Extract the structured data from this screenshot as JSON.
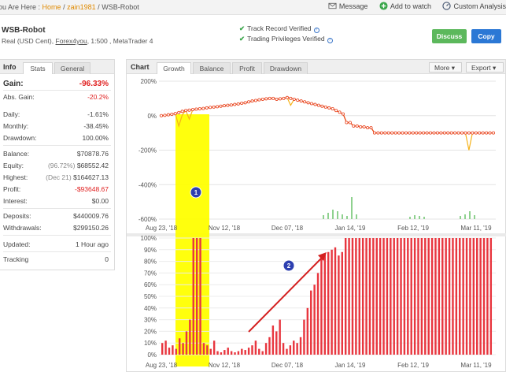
{
  "breadcrumb": {
    "prefix": "ou Are Here :",
    "home": "Home",
    "sep": "/",
    "user": "zain1981",
    "page": "WSB-Robot"
  },
  "top_actions": {
    "message": "Message",
    "watch": "Add to watch",
    "analysis": "Custom Analysis"
  },
  "account": {
    "name": "WSB-Robot",
    "desc_prefix": "Real (USD Cent),",
    "broker": "Forex4you",
    "desc_suffix": ", 1:500 , MetaTrader 4",
    "track_record": "Track Record Verified",
    "trading_privileges": "Trading Privileges Verified"
  },
  "buttons": {
    "discuss": "Discuss",
    "copy": "Copy"
  },
  "info": {
    "title": "Info",
    "tabs": [
      "Stats",
      "General"
    ],
    "gain_label": "Gain:",
    "gain_value": "-96.33%",
    "abs_gain_label": "Abs. Gain:",
    "abs_gain_value": "-20.2%",
    "daily_label": "Daily:",
    "daily_value": "-1.61%",
    "monthly_label": "Monthly:",
    "monthly_value": "-38.45%",
    "drawdown_label": "Drawdown:",
    "drawdown_value": "100.00%",
    "balance_label": "Balance:",
    "balance_value": "$70878.76",
    "equity_label": "Equity:",
    "equity_pct": "(96.72%)",
    "equity_value": "$68552.42",
    "highest_label": "Highest:",
    "highest_date": "(Dec 21)",
    "highest_value": "$164627.13",
    "profit_label": "Profit:",
    "profit_value": "-$93648.67",
    "interest_label": "Interest:",
    "interest_value": "$0.00",
    "deposits_label": "Deposits:",
    "deposits_value": "$440009.76",
    "withdrawals_label": "Withdrawals:",
    "withdrawals_value": "$299150.26",
    "updated_label": "Updated:",
    "updated_value": "1 Hour ago",
    "tracking_label": "Tracking",
    "tracking_value": "0"
  },
  "chart_panel": {
    "title": "Chart",
    "tabs": [
      "Growth",
      "Balance",
      "Profit",
      "Drawdown"
    ],
    "more": "More",
    "export": "Export"
  },
  "colors": {
    "growth_line": "#e8431e",
    "equity_line": "#f5b21a",
    "bars_green": "#8fd18f",
    "drawdown_bars": "#e8363f",
    "highlight": "#ffff00",
    "arrow": "#d42020"
  },
  "chart_data": [
    {
      "type": "line",
      "title": "Growth",
      "y_ticks": [
        "200%",
        "0%",
        "-200%",
        "-400%",
        "-600%"
      ],
      "x_ticks": [
        "Aug 23, '18",
        "Nov 12, '18",
        "Dec 07, '18",
        "Jan 14, '19",
        "Feb 12, '19",
        "Mar 11, '19"
      ],
      "ylim": [
        -600,
        200
      ],
      "series": [
        {
          "values": [
            0,
            2,
            5,
            8,
            12,
            18,
            25,
            30,
            32,
            35,
            38,
            40,
            42,
            45,
            48,
            50,
            52,
            55,
            58,
            60,
            62,
            65,
            68,
            72,
            75,
            80,
            85,
            88,
            92,
            95,
            98,
            100,
            100,
            95,
            98,
            100,
            105,
            100,
            95,
            90,
            85,
            80,
            75,
            70,
            65,
            60,
            55,
            50,
            45,
            40,
            30,
            20,
            10,
            -40,
            -40,
            -60,
            -60,
            -65,
            -65,
            -70,
            -70,
            -100,
            -100,
            -100,
            -100,
            -100,
            -100,
            -100,
            -100,
            -100,
            -100,
            -100,
            -100,
            -100,
            -100,
            -100,
            -100,
            -100,
            -100,
            -100,
            -100,
            -100,
            -100,
            -100,
            -100,
            -100,
            -100,
            -100,
            -100,
            -100,
            -100,
            -100,
            -100,
            -100,
            -100,
            -100
          ]
        },
        {
          "values": [
            0,
            2,
            5,
            8,
            12,
            -60,
            5,
            30,
            -20,
            35,
            38,
            40,
            42,
            45,
            48,
            50,
            52,
            55,
            58,
            60,
            62,
            65,
            68,
            72,
            75,
            80,
            85,
            88,
            92,
            95,
            98,
            100,
            100,
            95,
            98,
            100,
            105,
            60,
            95,
            90,
            85,
            80,
            75,
            70,
            65,
            60,
            55,
            50,
            45,
            40,
            30,
            20,
            10,
            -40,
            -40,
            -60,
            -60,
            -65,
            -65,
            -70,
            -70,
            -100,
            -100,
            -100,
            -100,
            -100,
            -100,
            -100,
            -100,
            -100,
            -100,
            -100,
            -100,
            -100,
            -100,
            -100,
            -100,
            -100,
            -100,
            -100,
            -100,
            -100,
            -100,
            -100,
            -100,
            -100,
            -100,
            -100,
            -200,
            -100,
            -100,
            -100,
            -100,
            -100,
            -100,
            -100
          ]
        }
      ]
    },
    {
      "type": "bar",
      "title": "Drawdown",
      "y_ticks": [
        "100%",
        "90%",
        "80%",
        "70%",
        "60%",
        "50%",
        "40%",
        "30%",
        "20%",
        "10%",
        "0%"
      ],
      "x_ticks": [
        "Aug 23, '18",
        "Nov 12, '18",
        "Dec 07, '18",
        "Jan 14, '19",
        "Feb 12, '19",
        "Mar 11, '19"
      ],
      "ylim": [
        0,
        100
      ],
      "values": [
        10,
        12,
        6,
        8,
        5,
        14,
        10,
        20,
        30,
        100,
        100,
        100,
        10,
        8,
        5,
        12,
        3,
        2,
        4,
        6,
        3,
        2,
        3,
        5,
        4,
        6,
        8,
        12,
        5,
        3,
        10,
        15,
        25,
        20,
        30,
        10,
        5,
        8,
        12,
        10,
        15,
        30,
        40,
        55,
        60,
        70,
        85,
        86,
        88,
        90,
        92,
        85,
        88,
        100,
        100,
        100,
        100,
        100,
        100,
        100,
        100,
        100,
        100,
        100,
        100,
        100,
        100,
        100,
        100,
        100,
        100,
        100,
        100,
        100,
        100,
        100,
        100,
        100,
        100,
        100,
        100,
        100,
        100,
        100,
        100,
        100,
        100,
        100,
        100,
        100,
        100,
        100,
        100,
        100,
        100,
        100
      ],
      "annotations": [
        "1",
        "2"
      ]
    }
  ]
}
